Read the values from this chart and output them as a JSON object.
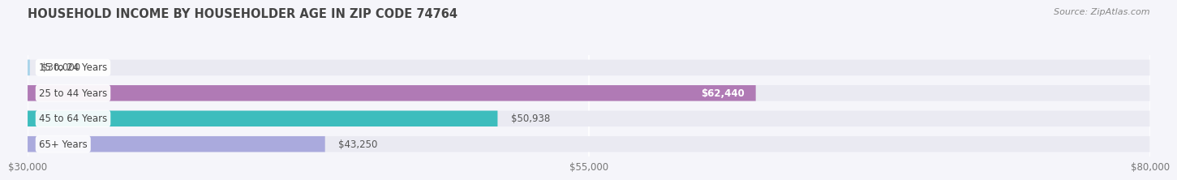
{
  "title": "HOUSEHOLD INCOME BY HOUSEHOLDER AGE IN ZIP CODE 74764",
  "source": "Source: ZipAtlas.com",
  "categories": [
    "15 to 24 Years",
    "25 to 44 Years",
    "45 to 64 Years",
    "65+ Years"
  ],
  "values": [
    30000,
    62440,
    50938,
    43250
  ],
  "bar_colors": [
    "#a8d4ea",
    "#b07ab5",
    "#3dbdbd",
    "#aaaadd"
  ],
  "x_min": 30000,
  "x_max": 80000,
  "x_ticks": [
    30000,
    55000,
    80000
  ],
  "x_tick_labels": [
    "$30,000",
    "$55,000",
    "$80,000"
  ],
  "bar_height": 0.62,
  "background_color": "#f5f5fa",
  "bar_bg_color": "#eaeaf2",
  "value_labels": [
    "$30,000",
    "$62,440",
    "$50,938",
    "$43,250"
  ],
  "value_label_inside": [
    false,
    true,
    false,
    false
  ],
  "title_fontsize": 10.5,
  "source_fontsize": 8,
  "tick_fontsize": 8.5,
  "bar_label_fontsize": 8.5,
  "value_label_fontsize": 8.5
}
